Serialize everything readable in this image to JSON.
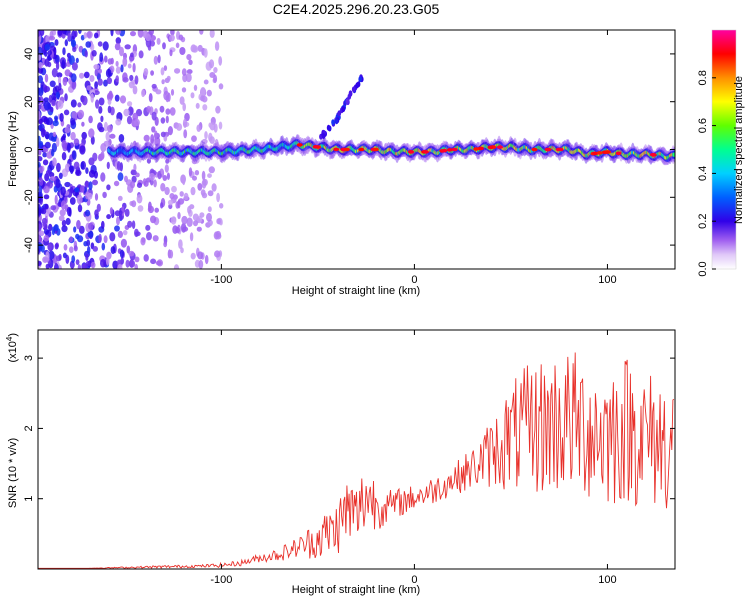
{
  "title": "C2E4.2025.296.20.23.G05",
  "chart_data": [
    {
      "type": "heatmap",
      "title": "C2E4.2025.296.20.23.G05",
      "xlabel": "Height of straight line (km)",
      "ylabel": "Frequency (Hz)",
      "xlim": [
        -195,
        135
      ],
      "ylim": [
        -50,
        50
      ],
      "xticks": [
        -100,
        0,
        100
      ],
      "yticks": [
        -40,
        -20,
        0,
        20,
        40
      ],
      "colorbar": {
        "label": "Normalized spectral amplitude",
        "range": [
          0,
          1
        ],
        "ticks": [
          0.0,
          0.2,
          0.4,
          0.6,
          0.8
        ],
        "colors": [
          "#ffffff",
          "#b080f0",
          "#7000e0",
          "#0000ff",
          "#00c0ff",
          "#00ff80",
          "#80ff00",
          "#ffff00",
          "#ff8000",
          "#ff0000",
          "#ff00a0"
        ]
      },
      "ridge": {
        "x": [
          -155,
          -140,
          -120,
          -100,
          -80,
          -70,
          -60,
          -50,
          -40,
          -30,
          -20,
          -10,
          0,
          10,
          20,
          30,
          40,
          50,
          60,
          70,
          80,
          90,
          100,
          110,
          120,
          135
        ],
        "y": [
          -1,
          -1,
          -1,
          -1,
          0,
          1,
          2,
          1,
          0,
          0,
          0,
          -1,
          -1,
          -1,
          0,
          0,
          1,
          1,
          0,
          0,
          0,
          -2,
          -1,
          -2,
          -2,
          -3
        ]
      },
      "spur": {
        "x": [
          -50,
          -45,
          -40,
          -35,
          -30,
          -27
        ],
        "y": [
          4,
          8,
          13,
          20,
          27,
          30
        ]
      }
    },
    {
      "type": "line",
      "xlabel": "Height of straight line (km)",
      "ylabel": "SNR (10 * v/v)",
      "scale_label": "(x10",
      "scale_exp": "4",
      "xlim": [
        -195,
        135
      ],
      "ylim": [
        0,
        3.4
      ],
      "xticks": [
        -100,
        0,
        100
      ],
      "yticks": [
        1,
        2,
        3
      ],
      "color": "#e8302a",
      "x": [
        -195,
        -170,
        -150,
        -130,
        -110,
        -100,
        -90,
        -80,
        -70,
        -60,
        -50,
        -40,
        -35,
        -30,
        -25,
        -20,
        -15,
        -10,
        0,
        10,
        20,
        30,
        40,
        50,
        60,
        70,
        80,
        90,
        100,
        110,
        120,
        130,
        135
      ],
      "y": [
        0.01,
        0.01,
        0.02,
        0.03,
        0.04,
        0.05,
        0.08,
        0.15,
        0.2,
        0.3,
        0.4,
        0.55,
        0.8,
        0.7,
        1.0,
        0.9,
        0.85,
        0.9,
        1.0,
        1.1,
        1.25,
        1.4,
        1.6,
        1.8,
        1.9,
        1.95,
        2.0,
        1.9,
        1.8,
        1.9,
        1.75,
        1.7,
        1.7
      ],
      "spread": [
        0.0,
        0.0,
        0.01,
        0.02,
        0.02,
        0.03,
        0.04,
        0.06,
        0.1,
        0.15,
        0.3,
        0.4,
        0.5,
        0.5,
        0.5,
        0.4,
        0.25,
        0.22,
        0.18,
        0.2,
        0.22,
        0.3,
        0.5,
        0.8,
        0.95,
        1.05,
        1.05,
        1.05,
        1.05,
        1.1,
        1.0,
        1.0,
        1.0
      ]
    }
  ]
}
